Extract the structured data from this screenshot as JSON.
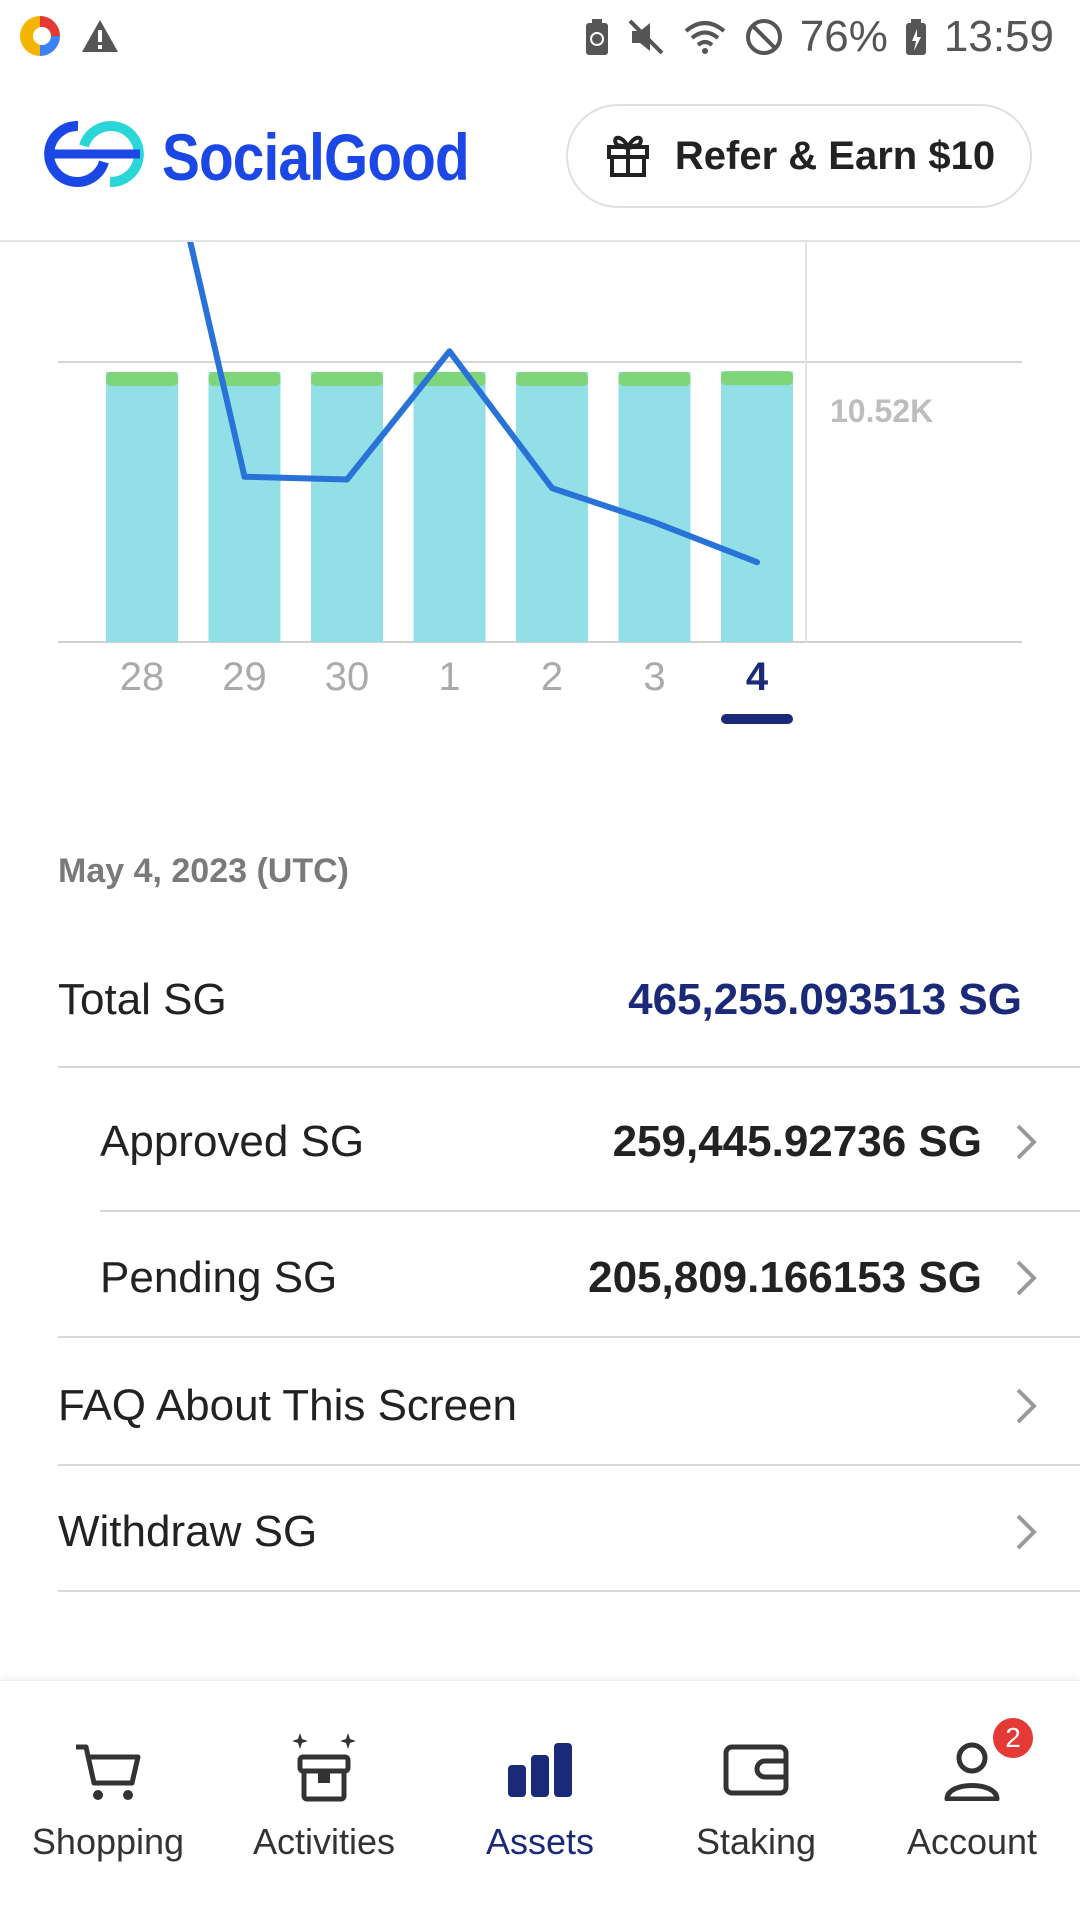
{
  "status_bar": {
    "battery": "76%",
    "time": "13:59"
  },
  "header": {
    "brand": "SocialGood",
    "refer_label": "Refer & Earn $10"
  },
  "chart_data": {
    "type": "bar",
    "categories": [
      "28",
      "29",
      "30",
      "1",
      "2",
      "3",
      "4"
    ],
    "selected_category": "4",
    "y_tick_label": "10.52K",
    "series": [
      {
        "values": [
          10.52,
          10.52,
          10.52,
          10.52,
          10.52,
          10.52,
          10.55
        ]
      },
      {
        "values": [
          16.0,
          10.3,
          10.25,
          12.5,
          10.1,
          9.5,
          8.8
        ]
      }
    ],
    "colors": {
      "bar": "#93dfe7",
      "bar_top": "#7fd57a",
      "line": "#2872d8",
      "selected": "#1b2a78",
      "tick": "#aaaaaa"
    }
  },
  "date_label": "May 4, 2023 (UTC)",
  "rows": {
    "total": {
      "label": "Total SG",
      "value": "465,255.093513 SG"
    },
    "approved": {
      "label": "Approved SG",
      "value": "259,445.92736 SG"
    },
    "pending": {
      "label": "Pending SG",
      "value": "205,809.166153 SG"
    },
    "faq": {
      "label": "FAQ About This Screen"
    },
    "withdraw": {
      "label": "Withdraw SG"
    }
  },
  "nav": {
    "items": [
      {
        "label": "Shopping",
        "icon": "cart-icon"
      },
      {
        "label": "Activities",
        "icon": "gift-box-icon"
      },
      {
        "label": "Assets",
        "icon": "bar-chart-icon",
        "active": true
      },
      {
        "label": "Staking",
        "icon": "wallet-icon"
      },
      {
        "label": "Account",
        "icon": "person-icon",
        "badge": "2"
      }
    ]
  }
}
